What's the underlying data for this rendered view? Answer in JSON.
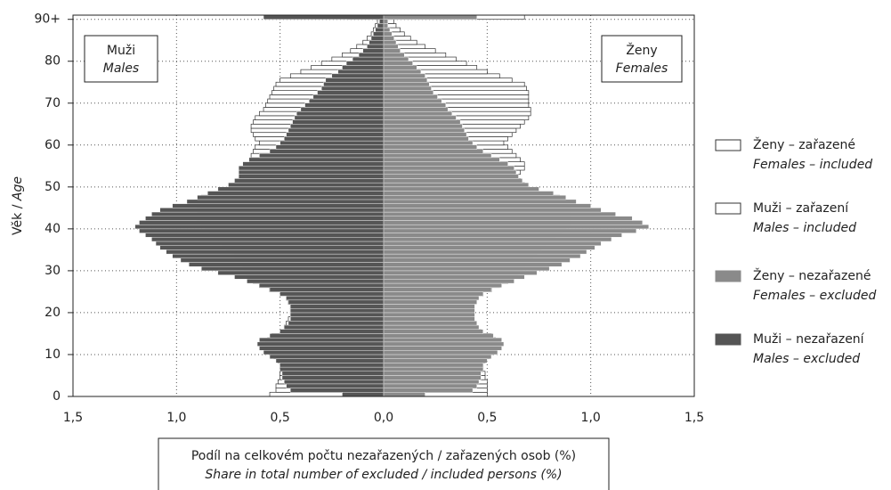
{
  "chart_data": {
    "type": "pyramid",
    "ylabel": "Věk /",
    "ylabel_en": "Age",
    "xlabel": "Podíl na celkovém počtu nezařazených / zařazených osob (%)",
    "xlabel_en": "Share in total number of excluded / included persons (%)",
    "left_box": {
      "label": "Muži",
      "label_en": "Males"
    },
    "right_box": {
      "label": "Ženy",
      "label_en": "Females"
    },
    "xlim": [
      -1.5,
      1.5
    ],
    "xticks": [
      {
        "value": -1.5,
        "label": "1,5"
      },
      {
        "value": -1,
        "label": "1,0"
      },
      {
        "value": -0.5,
        "label": "0,5"
      },
      {
        "value": 0,
        "label": "0,0"
      },
      {
        "value": 0.5,
        "label": "0,5"
      },
      {
        "value": 1,
        "label": "1,0"
      },
      {
        "value": 1.5,
        "label": "1,5"
      }
    ],
    "ylim": [
      0,
      91
    ],
    "yticks": [
      0,
      10,
      20,
      30,
      40,
      50,
      60,
      70,
      80,
      {
        "value": 90,
        "label": "90+"
      }
    ],
    "grid": true,
    "ages": [
      0,
      1,
      2,
      3,
      4,
      5,
      6,
      7,
      8,
      9,
      10,
      11,
      12,
      13,
      14,
      15,
      16,
      17,
      18,
      19,
      20,
      21,
      22,
      23,
      24,
      25,
      26,
      27,
      28,
      29,
      30,
      31,
      32,
      33,
      34,
      35,
      36,
      37,
      38,
      39,
      40,
      41,
      42,
      43,
      44,
      45,
      46,
      47,
      48,
      49,
      50,
      51,
      52,
      53,
      54,
      55,
      56,
      57,
      58,
      59,
      60,
      61,
      62,
      63,
      64,
      65,
      66,
      67,
      68,
      69,
      70,
      71,
      72,
      73,
      74,
      75,
      76,
      77,
      78,
      79,
      80,
      81,
      82,
      83,
      84,
      85,
      86,
      87,
      88,
      89,
      90
    ],
    "series": [
      {
        "name": "Ženy – zařazené",
        "name_en": "Females – included",
        "color": "#ffffff",
        "side": "right",
        "values": [
          0.5,
          0.5,
          0.5,
          0.5,
          0.49,
          0.49,
          0.48,
          0.48,
          0.49,
          0.51,
          0.53,
          0.54,
          0.55,
          0.54,
          0.52,
          0.47,
          0.45,
          0.44,
          0.43,
          0.43,
          0.42,
          0.42,
          0.43,
          0.45,
          0.48,
          0.52,
          0.56,
          0.6,
          0.63,
          0.65,
          0.67,
          0.68,
          0.7,
          0.72,
          0.74,
          0.76,
          0.78,
          0.8,
          0.83,
          0.86,
          0.88,
          0.9,
          0.9,
          0.9,
          0.9,
          0.9,
          0.88,
          0.85,
          0.75,
          0.7,
          0.68,
          0.66,
          0.65,
          0.66,
          0.68,
          0.68,
          0.66,
          0.64,
          0.62,
          0.6,
          0.58,
          0.6,
          0.62,
          0.64,
          0.66,
          0.68,
          0.7,
          0.71,
          0.71,
          0.7,
          0.7,
          0.7,
          0.7,
          0.69,
          0.68,
          0.62,
          0.56,
          0.5,
          0.45,
          0.4,
          0.35,
          0.3,
          0.25,
          0.2,
          0.16,
          0.13,
          0.1,
          0.08,
          0.06,
          0.05,
          0.68
        ]
      },
      {
        "name": "Muži – zařazení",
        "name_en": "Males – included",
        "color": "#ffffff",
        "side": "left",
        "values": [
          0.55,
          0.52,
          0.52,
          0.51,
          0.5,
          0.5,
          0.5,
          0.5,
          0.51,
          0.53,
          0.55,
          0.56,
          0.57,
          0.56,
          0.54,
          0.5,
          0.48,
          0.47,
          0.46,
          0.45,
          0.45,
          0.45,
          0.46,
          0.47,
          0.5,
          0.55,
          0.6,
          0.63,
          0.65,
          0.66,
          0.67,
          0.68,
          0.7,
          0.72,
          0.74,
          0.76,
          0.78,
          0.8,
          0.82,
          0.84,
          0.86,
          0.88,
          0.9,
          0.9,
          0.9,
          0.9,
          0.9,
          0.88,
          0.8,
          0.75,
          0.72,
          0.7,
          0.68,
          0.66,
          0.65,
          0.65,
          0.64,
          0.64,
          0.63,
          0.62,
          0.6,
          0.62,
          0.63,
          0.64,
          0.64,
          0.63,
          0.62,
          0.6,
          0.58,
          0.57,
          0.56,
          0.55,
          0.54,
          0.53,
          0.52,
          0.5,
          0.45,
          0.4,
          0.35,
          0.3,
          0.25,
          0.2,
          0.16,
          0.13,
          0.1,
          0.08,
          0.06,
          0.05,
          0.04,
          0.03,
          0.17
        ]
      },
      {
        "name": "Ženy – nezařazené",
        "name_en": "Females – excluded",
        "color": "#8a8a8a",
        "side": "right",
        "values": [
          0.2,
          0.43,
          0.45,
          0.46,
          0.47,
          0.47,
          0.48,
          0.48,
          0.5,
          0.52,
          0.55,
          0.57,
          0.58,
          0.57,
          0.53,
          0.48,
          0.46,
          0.45,
          0.44,
          0.44,
          0.44,
          0.44,
          0.45,
          0.46,
          0.48,
          0.52,
          0.57,
          0.63,
          0.68,
          0.74,
          0.8,
          0.86,
          0.9,
          0.95,
          0.98,
          1.02,
          1.05,
          1.1,
          1.15,
          1.22,
          1.28,
          1.25,
          1.2,
          1.12,
          1.05,
          1.0,
          0.93,
          0.88,
          0.82,
          0.75,
          0.7,
          0.67,
          0.65,
          0.64,
          0.63,
          0.6,
          0.56,
          0.52,
          0.48,
          0.45,
          0.43,
          0.41,
          0.4,
          0.39,
          0.38,
          0.37,
          0.35,
          0.33,
          0.31,
          0.3,
          0.28,
          0.26,
          0.24,
          0.23,
          0.22,
          0.21,
          0.2,
          0.18,
          0.16,
          0.14,
          0.12,
          0.1,
          0.08,
          0.07,
          0.06,
          0.05,
          0.04,
          0.03,
          0.02,
          0.02,
          0.45
        ]
      },
      {
        "name": "Muži – nezařazení",
        "name_en": "Males – excluded",
        "color": "#555555",
        "side": "left",
        "values": [
          0.2,
          0.45,
          0.47,
          0.48,
          0.49,
          0.49,
          0.5,
          0.5,
          0.52,
          0.55,
          0.58,
          0.6,
          0.61,
          0.6,
          0.55,
          0.5,
          0.48,
          0.46,
          0.45,
          0.45,
          0.45,
          0.45,
          0.46,
          0.47,
          0.5,
          0.55,
          0.6,
          0.66,
          0.72,
          0.8,
          0.88,
          0.94,
          0.98,
          1.02,
          1.05,
          1.08,
          1.1,
          1.12,
          1.15,
          1.18,
          1.2,
          1.18,
          1.15,
          1.12,
          1.08,
          1.02,
          0.95,
          0.9,
          0.85,
          0.8,
          0.75,
          0.72,
          0.7,
          0.7,
          0.7,
          0.68,
          0.65,
          0.6,
          0.55,
          0.52,
          0.5,
          0.48,
          0.47,
          0.46,
          0.45,
          0.44,
          0.43,
          0.42,
          0.4,
          0.38,
          0.36,
          0.34,
          0.32,
          0.3,
          0.29,
          0.28,
          0.25,
          0.22,
          0.2,
          0.18,
          0.15,
          0.12,
          0.1,
          0.08,
          0.07,
          0.06,
          0.05,
          0.04,
          0.03,
          0.02,
          0.58
        ]
      }
    ]
  }
}
